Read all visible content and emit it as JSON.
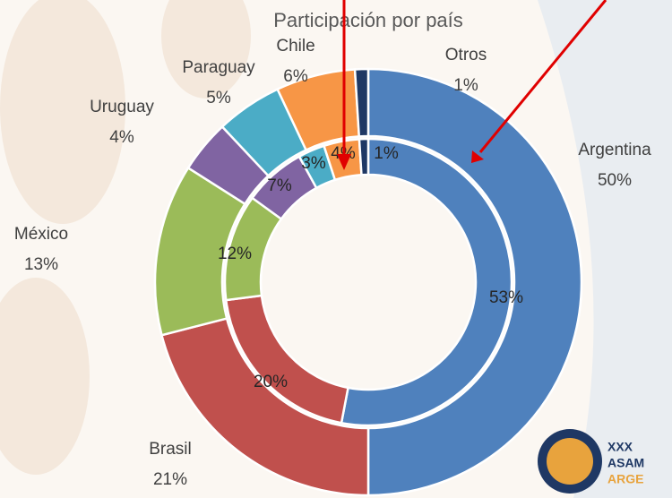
{
  "chart_data": {
    "type": "doughnut",
    "title": "Participación por país",
    "categories": [
      "Argentina",
      "Brasil",
      "México",
      "Uruguay",
      "Paraguay",
      "Chile",
      "Otros"
    ],
    "colors": [
      "#4f81bd",
      "#c0504d",
      "#9bbb59",
      "#8064a2",
      "#4bacc6",
      "#f79646",
      "#1f3864"
    ],
    "rings": [
      {
        "values": [
          50,
          21,
          13,
          4,
          5,
          6,
          1
        ],
        "value_labels": [
          "50%",
          "21%",
          "13%",
          "4%",
          "5%",
          "6%",
          "1%"
        ]
      },
      {
        "values": [
          53,
          20,
          12,
          7,
          3,
          4,
          1
        ],
        "value_labels": [
          "53%",
          "20%",
          "12%",
          "7%",
          "3%",
          "4%",
          "1%"
        ]
      }
    ]
  },
  "logo": {
    "lines": [
      "XXX",
      "ASAM",
      "ARGE"
    ]
  }
}
